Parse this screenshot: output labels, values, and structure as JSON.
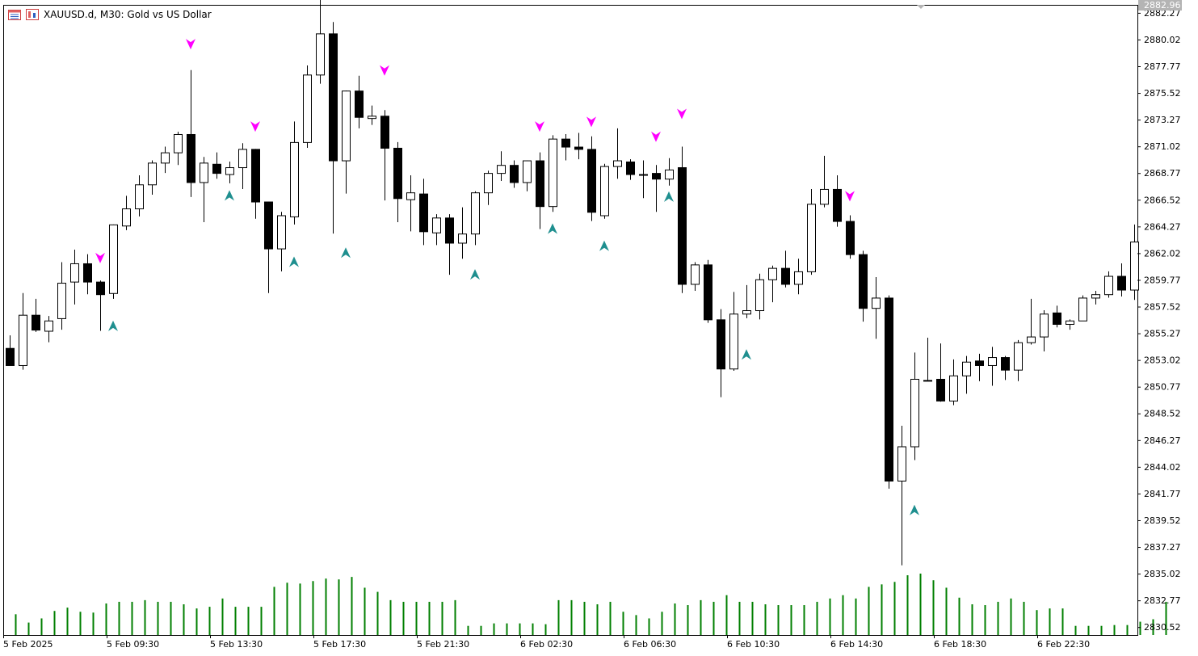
{
  "window": {
    "symbol_label": "XAUUSD.d, M30:  Gold vs US Dollar"
  },
  "colors": {
    "bullish_body": "#ffffff",
    "bearish_body": "#000000",
    "wick": "#000000",
    "volume": "#007f00",
    "buy_arrow": "#1f8f8f",
    "sell_arrow": "#ff00ff",
    "current_price_bg": "#b4b4b4"
  },
  "chart_data": {
    "type": "candlestick",
    "title": "XAUUSD.d, M30:  Gold vs US Dollar",
    "ylim": [
      2829.1,
      2882.8
    ],
    "grid": false,
    "current_price": "2882.96",
    "y_ticks": [
      "2882.27",
      "2880.02",
      "2877.77",
      "2875.52",
      "2873.27",
      "2871.02",
      "2868.77",
      "2866.52",
      "2864.27",
      "2862.02",
      "2859.77",
      "2857.52",
      "2855.27",
      "2853.02",
      "2850.77",
      "2848.52",
      "2846.27",
      "2844.02",
      "2841.77",
      "2839.52",
      "2837.27",
      "2835.02",
      "2832.77",
      "2830.52"
    ],
    "x_ticks": [
      "5 Feb 2025",
      "5 Feb 09:30",
      "5 Feb 13:30",
      "5 Feb 17:30",
      "5 Feb 21:30",
      "6 Feb 02:30",
      "6 Feb 06:30",
      "6 Feb 10:30",
      "6 Feb 14:30",
      "6 Feb 18:30",
      "6 Feb 22:30"
    ],
    "candles": [
      {
        "o": 2853.5,
        "h": 2854.6,
        "l": 2852.2,
        "c": 2852.0
      },
      {
        "o": 2852.0,
        "h": 2858.3,
        "l": 2851.6,
        "c": 2856.4
      },
      {
        "o": 2856.4,
        "h": 2857.8,
        "l": 2854.9,
        "c": 2855.1
      },
      {
        "o": 2855.0,
        "h": 2856.3,
        "l": 2854.0,
        "c": 2855.9
      },
      {
        "o": 2856.1,
        "h": 2861.0,
        "l": 2855.1,
        "c": 2859.2
      },
      {
        "o": 2859.3,
        "h": 2862.1,
        "l": 2857.3,
        "c": 2860.9
      },
      {
        "o": 2860.9,
        "h": 2861.7,
        "l": 2858.2,
        "c": 2859.3
      },
      {
        "o": 2859.3,
        "h": 2859.4,
        "l": 2855.0,
        "c": 2858.2
      },
      {
        "o": 2858.3,
        "h": 2864.3,
        "l": 2857.8,
        "c": 2864.3
      },
      {
        "o": 2864.2,
        "h": 2866.8,
        "l": 2863.8,
        "c": 2865.7
      },
      {
        "o": 2865.7,
        "h": 2868.6,
        "l": 2865.0,
        "c": 2867.8
      },
      {
        "o": 2867.8,
        "h": 2869.9,
        "l": 2866.9,
        "c": 2869.7
      },
      {
        "o": 2869.7,
        "h": 2871.1,
        "l": 2868.8,
        "c": 2870.6
      },
      {
        "o": 2870.6,
        "h": 2872.4,
        "l": 2869.5,
        "c": 2872.2
      },
      {
        "o": 2872.2,
        "h": 2877.8,
        "l": 2866.7,
        "c": 2868.0
      },
      {
        "o": 2868.0,
        "h": 2870.2,
        "l": 2864.5,
        "c": 2869.7
      },
      {
        "o": 2869.6,
        "h": 2870.6,
        "l": 2868.3,
        "c": 2868.8
      },
      {
        "o": 2868.7,
        "h": 2869.8,
        "l": 2867.9,
        "c": 2869.3
      },
      {
        "o": 2869.3,
        "h": 2871.4,
        "l": 2867.4,
        "c": 2870.9
      },
      {
        "o": 2870.9,
        "h": 2870.9,
        "l": 2864.8,
        "c": 2866.3
      },
      {
        "o": 2866.3,
        "h": 2866.3,
        "l": 2858.3,
        "c": 2862.2
      },
      {
        "o": 2862.2,
        "h": 2865.4,
        "l": 2860.2,
        "c": 2865.1
      },
      {
        "o": 2865.0,
        "h": 2873.3,
        "l": 2864.3,
        "c": 2871.5
      },
      {
        "o": 2871.5,
        "h": 2878.2,
        "l": 2871.0,
        "c": 2877.4
      },
      {
        "o": 2877.4,
        "h": 2884.3,
        "l": 2876.6,
        "c": 2881.0
      },
      {
        "o": 2881.0,
        "h": 2882.0,
        "l": 2863.5,
        "c": 2869.9
      },
      {
        "o": 2869.9,
        "h": 2876.0,
        "l": 2867.0,
        "c": 2876.0
      },
      {
        "o": 2876.0,
        "h": 2877.3,
        "l": 2872.7,
        "c": 2873.7
      },
      {
        "o": 2873.6,
        "h": 2874.7,
        "l": 2873.0,
        "c": 2873.8
      },
      {
        "o": 2873.8,
        "h": 2874.3,
        "l": 2866.4,
        "c": 2871.0
      },
      {
        "o": 2871.0,
        "h": 2871.5,
        "l": 2864.5,
        "c": 2866.6
      },
      {
        "o": 2866.5,
        "h": 2868.6,
        "l": 2863.7,
        "c": 2867.1
      },
      {
        "o": 2867.0,
        "h": 2868.3,
        "l": 2862.5,
        "c": 2863.7
      },
      {
        "o": 2863.6,
        "h": 2865.2,
        "l": 2862.5,
        "c": 2864.9
      },
      {
        "o": 2864.9,
        "h": 2865.2,
        "l": 2859.9,
        "c": 2862.7
      },
      {
        "o": 2862.7,
        "h": 2865.8,
        "l": 2861.3,
        "c": 2863.5
      },
      {
        "o": 2863.5,
        "h": 2867.2,
        "l": 2862.5,
        "c": 2867.1
      },
      {
        "o": 2867.1,
        "h": 2869.0,
        "l": 2866.0,
        "c": 2868.8
      },
      {
        "o": 2868.8,
        "h": 2870.7,
        "l": 2868.1,
        "c": 2869.5
      },
      {
        "o": 2869.5,
        "h": 2869.9,
        "l": 2867.5,
        "c": 2868.0
      },
      {
        "o": 2868.0,
        "h": 2869.9,
        "l": 2867.2,
        "c": 2869.9
      },
      {
        "o": 2869.9,
        "h": 2870.6,
        "l": 2863.9,
        "c": 2865.9
      },
      {
        "o": 2865.9,
        "h": 2872.1,
        "l": 2865.4,
        "c": 2871.8
      },
      {
        "o": 2871.8,
        "h": 2872.2,
        "l": 2869.9,
        "c": 2871.1
      },
      {
        "o": 2871.1,
        "h": 2872.3,
        "l": 2870.0,
        "c": 2870.9
      },
      {
        "o": 2870.9,
        "h": 2872.0,
        "l": 2864.6,
        "c": 2865.4
      },
      {
        "o": 2865.1,
        "h": 2869.6,
        "l": 2864.8,
        "c": 2869.4
      },
      {
        "o": 2869.4,
        "h": 2872.7,
        "l": 2868.3,
        "c": 2869.9
      },
      {
        "o": 2869.8,
        "h": 2870.0,
        "l": 2868.2,
        "c": 2868.7
      },
      {
        "o": 2868.7,
        "h": 2869.9,
        "l": 2866.6,
        "c": 2868.7
      },
      {
        "o": 2868.8,
        "h": 2869.5,
        "l": 2865.4,
        "c": 2868.3
      },
      {
        "o": 2868.3,
        "h": 2870.1,
        "l": 2867.7,
        "c": 2869.1
      },
      {
        "o": 2869.3,
        "h": 2871.1,
        "l": 2858.3,
        "c": 2859.1
      },
      {
        "o": 2859.1,
        "h": 2861.0,
        "l": 2858.5,
        "c": 2860.8
      },
      {
        "o": 2860.8,
        "h": 2861.2,
        "l": 2855.7,
        "c": 2856.0
      },
      {
        "o": 2856.0,
        "h": 2856.9,
        "l": 2849.2,
        "c": 2851.7
      },
      {
        "o": 2851.7,
        "h": 2858.4,
        "l": 2851.5,
        "c": 2856.5
      },
      {
        "o": 2856.5,
        "h": 2859.0,
        "l": 2856.1,
        "c": 2856.8
      },
      {
        "o": 2856.8,
        "h": 2860.0,
        "l": 2856.0,
        "c": 2859.5
      },
      {
        "o": 2859.5,
        "h": 2860.7,
        "l": 2857.5,
        "c": 2860.5
      },
      {
        "o": 2860.5,
        "h": 2862.0,
        "l": 2858.8,
        "c": 2859.1
      },
      {
        "o": 2859.1,
        "h": 2861.3,
        "l": 2858.2,
        "c": 2860.2
      },
      {
        "o": 2860.2,
        "h": 2867.4,
        "l": 2859.9,
        "c": 2866.1
      },
      {
        "o": 2866.1,
        "h": 2870.3,
        "l": 2865.8,
        "c": 2867.4
      },
      {
        "o": 2867.4,
        "h": 2868.6,
        "l": 2864.1,
        "c": 2864.6
      },
      {
        "o": 2864.6,
        "h": 2865.1,
        "l": 2861.3,
        "c": 2861.7
      },
      {
        "o": 2861.7,
        "h": 2862.0,
        "l": 2855.8,
        "c": 2857.0
      },
      {
        "o": 2857.0,
        "h": 2859.7,
        "l": 2854.3,
        "c": 2857.9
      },
      {
        "o": 2857.9,
        "h": 2858.1,
        "l": 2841.2,
        "c": 2841.9
      },
      {
        "o": 2841.9,
        "h": 2846.7,
        "l": 2834.5,
        "c": 2844.9
      },
      {
        "o": 2844.9,
        "h": 2853.1,
        "l": 2843.7,
        "c": 2850.8
      },
      {
        "o": 2850.7,
        "h": 2854.4,
        "l": 2850.7,
        "c": 2850.7
      },
      {
        "o": 2850.8,
        "h": 2853.9,
        "l": 2848.8,
        "c": 2848.9
      },
      {
        "o": 2848.9,
        "h": 2852.5,
        "l": 2848.5,
        "c": 2851.1
      },
      {
        "o": 2851.1,
        "h": 2852.8,
        "l": 2849.5,
        "c": 2852.3
      },
      {
        "o": 2852.4,
        "h": 2853.0,
        "l": 2850.6,
        "c": 2852.0
      },
      {
        "o": 2852.0,
        "h": 2853.6,
        "l": 2850.2,
        "c": 2852.7
      },
      {
        "o": 2852.7,
        "h": 2852.8,
        "l": 2850.7,
        "c": 2851.6
      },
      {
        "o": 2851.6,
        "h": 2854.2,
        "l": 2850.6,
        "c": 2854.0
      },
      {
        "o": 2854.0,
        "h": 2857.8,
        "l": 2853.8,
        "c": 2854.5
      },
      {
        "o": 2854.5,
        "h": 2856.8,
        "l": 2853.2,
        "c": 2856.5
      },
      {
        "o": 2856.6,
        "h": 2857.2,
        "l": 2855.3,
        "c": 2855.6
      },
      {
        "o": 2855.6,
        "h": 2856.0,
        "l": 2855.1,
        "c": 2855.9
      },
      {
        "o": 2855.9,
        "h": 2858.1,
        "l": 2855.9,
        "c": 2857.9
      },
      {
        "o": 2857.9,
        "h": 2858.5,
        "l": 2857.3,
        "c": 2858.2
      },
      {
        "o": 2858.2,
        "h": 2860.2,
        "l": 2857.9,
        "c": 2859.8
      },
      {
        "o": 2859.8,
        "h": 2860.9,
        "l": 2858.0,
        "c": 2858.6
      },
      {
        "o": 2858.6,
        "h": 2864.3,
        "l": 2857.7,
        "c": 2862.8
      }
    ],
    "volume": [
      25,
      15,
      20,
      29,
      33,
      28,
      27,
      38,
      40,
      40,
      42,
      40,
      40,
      37,
      32,
      34,
      44,
      34,
      34,
      34,
      58,
      63,
      62,
      65,
      68,
      67,
      70,
      57,
      52,
      42,
      40,
      40,
      40,
      40,
      42,
      11,
      11,
      14,
      14,
      14,
      14,
      13,
      42,
      42,
      40,
      37,
      40,
      28,
      24,
      20,
      28,
      38,
      36,
      42,
      40,
      48,
      40,
      40,
      37,
      36,
      36,
      36,
      40,
      44,
      48,
      44,
      58,
      61,
      64,
      72,
      74,
      66,
      57,
      45,
      37,
      36,
      40,
      44,
      40,
      30,
      32,
      32,
      11,
      11,
      11,
      12,
      12,
      16,
      19,
      40
    ],
    "signals": [
      {
        "type": "sell",
        "i": 7,
        "price": 2861.4
      },
      {
        "type": "buy",
        "i": 8,
        "price": 2855.4
      },
      {
        "type": "sell",
        "i": 14,
        "price": 2880.1
      },
      {
        "type": "buy",
        "i": 17,
        "price": 2866.8
      },
      {
        "type": "sell",
        "i": 19,
        "price": 2872.9
      },
      {
        "type": "buy",
        "i": 22,
        "price": 2861.0
      },
      {
        "type": "buy",
        "i": 26,
        "price": 2861.8
      },
      {
        "type": "sell",
        "i": 29,
        "price": 2877.8
      },
      {
        "type": "buy",
        "i": 36,
        "price": 2859.9
      },
      {
        "type": "sell",
        "i": 41,
        "price": 2872.9
      },
      {
        "type": "buy",
        "i": 42,
        "price": 2863.9
      },
      {
        "type": "sell",
        "i": 45,
        "price": 2873.3
      },
      {
        "type": "buy",
        "i": 46,
        "price": 2862.4
      },
      {
        "type": "sell",
        "i": 50,
        "price": 2872.0
      },
      {
        "type": "buy",
        "i": 51,
        "price": 2866.7
      },
      {
        "type": "sell",
        "i": 52,
        "price": 2874.0
      },
      {
        "type": "buy",
        "i": 57,
        "price": 2852.9
      },
      {
        "type": "sell",
        "i": 65,
        "price": 2866.8
      },
      {
        "type": "buy",
        "i": 70,
        "price": 2839.3
      }
    ]
  }
}
